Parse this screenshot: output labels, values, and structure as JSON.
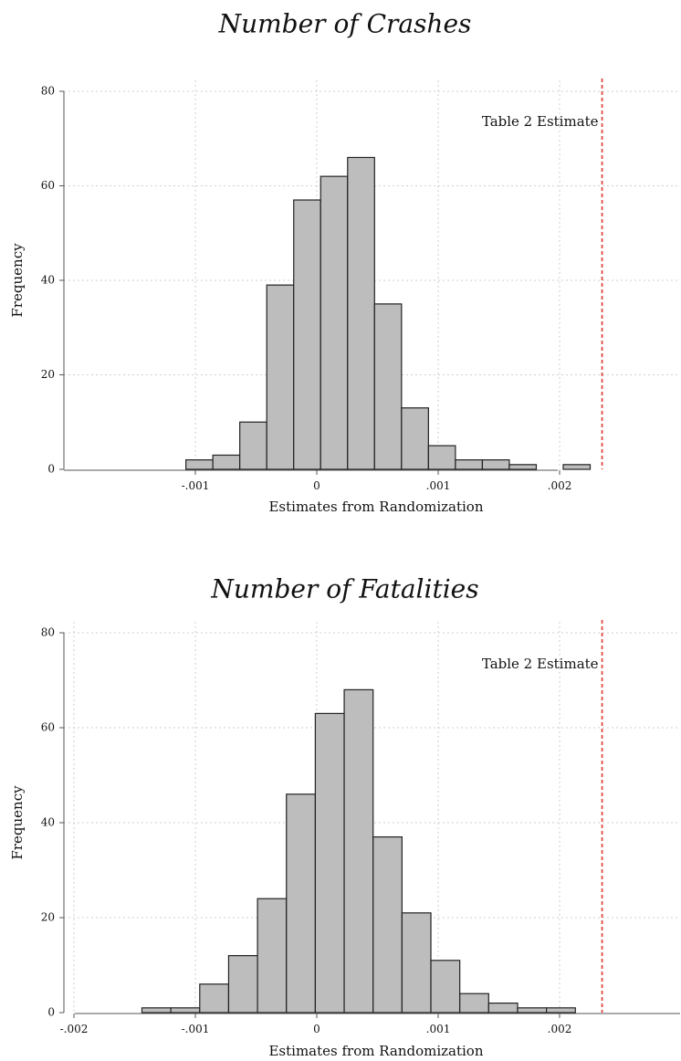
{
  "chart_data": [
    {
      "type": "bar",
      "title": "Number of Crashes",
      "xlabel": "Estimates from Randomization",
      "ylabel": "Frequency",
      "xlim": [
        -0.0021,
        0.00305
      ],
      "ylim": [
        0,
        80
      ],
      "x_ticks": [
        -0.001,
        0,
        0.001,
        0.002
      ],
      "x_tick_labels": [
        "-.001",
        "0",
        ".001",
        ".002"
      ],
      "x_tick_grid": [
        -0.001,
        0,
        0.001,
        0.002
      ],
      "y_ticks": [
        0,
        20,
        40,
        60,
        80
      ],
      "y_tick_labels": [
        "0",
        "20",
        "40",
        "60",
        "80"
      ],
      "grid": true,
      "bin_width": 0.000222,
      "bins": [
        {
          "start": -0.001078,
          "value": 2
        },
        {
          "start": -0.000856,
          "value": 3
        },
        {
          "start": -0.000634,
          "value": 10
        },
        {
          "start": -0.000412,
          "value": 39
        },
        {
          "start": -0.00019,
          "value": 57
        },
        {
          "start": 3.2e-05,
          "value": 62
        },
        {
          "start": 0.000254,
          "value": 66
        },
        {
          "start": 0.000476,
          "value": 35
        },
        {
          "start": 0.000698,
          "value": 13
        },
        {
          "start": 0.00092,
          "value": 5
        },
        {
          "start": 0.001142,
          "value": 2
        },
        {
          "start": 0.001364,
          "value": 2
        },
        {
          "start": 0.001586,
          "value": 1
        },
        {
          "start": 0.00203,
          "value": 1
        }
      ],
      "reference_line": {
        "x": 0.00235,
        "label": "Table 2 Estimate",
        "color": "#e0352b"
      }
    },
    {
      "type": "bar",
      "title": "Number of Fatalities",
      "xlabel": "Estimates from Randomization",
      "ylabel": "Frequency",
      "xlim": [
        -0.0021,
        0.00305
      ],
      "ylim": [
        0,
        80
      ],
      "x_ticks": [
        -0.002,
        -0.001,
        0,
        0.001,
        0.002
      ],
      "x_tick_labels": [
        "-.002",
        "-.001",
        "0",
        ".001",
        ".002"
      ],
      "x_tick_grid": [
        -0.002,
        -0.001,
        0,
        0.001,
        0.002
      ],
      "y_ticks": [
        0,
        20,
        40,
        60,
        80
      ],
      "y_tick_labels": [
        "0",
        "20",
        "40",
        "60",
        "80"
      ],
      "grid": true,
      "bin_width": 0.000238,
      "bins": [
        {
          "start": -0.00144,
          "value": 1
        },
        {
          "start": -0.001202,
          "value": 1
        },
        {
          "start": -0.000964,
          "value": 6
        },
        {
          "start": -0.000726,
          "value": 12
        },
        {
          "start": -0.000488,
          "value": 24
        },
        {
          "start": -0.00025,
          "value": 46
        },
        {
          "start": -1.2e-05,
          "value": 63
        },
        {
          "start": 0.000226,
          "value": 68
        },
        {
          "start": 0.000464,
          "value": 37
        },
        {
          "start": 0.000702,
          "value": 21
        },
        {
          "start": 0.00094,
          "value": 11
        },
        {
          "start": 0.001178,
          "value": 4
        },
        {
          "start": 0.001416,
          "value": 2
        },
        {
          "start": 0.001654,
          "value": 1
        },
        {
          "start": 0.001892,
          "value": 1
        }
      ],
      "reference_line": {
        "x": 0.00235,
        "label": "Table 2 Estimate",
        "color": "#e0352b"
      }
    }
  ]
}
